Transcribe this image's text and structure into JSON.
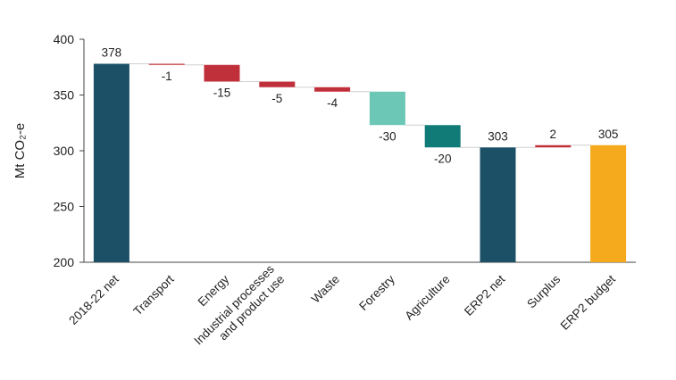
{
  "chart_data": {
    "type": "bar",
    "subtype": "waterfall",
    "title": "",
    "xlabel": "",
    "ylabel": "Mt CO₂-e",
    "ylim": [
      200,
      400
    ],
    "yticks": [
      "200",
      "250",
      "300",
      "350",
      "400"
    ],
    "grid": false,
    "legend": "none",
    "categories": [
      [
        "2018-22 net"
      ],
      [
        "Transport"
      ],
      [
        "Energy"
      ],
      [
        "Industrial processes",
        "and product use"
      ],
      [
        "Waste"
      ],
      [
        "Forestry"
      ],
      [
        "Agriculture"
      ],
      [
        "ERP2 net"
      ],
      [
        "Surplus"
      ],
      [
        "ERP2 budget"
      ]
    ],
    "bars": [
      {
        "start": 200,
        "end": 378,
        "label": "378",
        "color": "#1b5066"
      },
      {
        "start": 378,
        "end": 377,
        "label": "-1",
        "color": "#c0303a"
      },
      {
        "start": 377,
        "end": 362,
        "label": "-15",
        "color": "#c0303a"
      },
      {
        "start": 362,
        "end": 357,
        "label": "-5",
        "color": "#c0303a"
      },
      {
        "start": 357,
        "end": 353,
        "label": "-4",
        "color": "#c0303a"
      },
      {
        "start": 353,
        "end": 323,
        "label": "-30",
        "color": "#6cc7b7"
      },
      {
        "start": 323,
        "end": 303,
        "label": "-20",
        "color": "#117b78"
      },
      {
        "start": 200,
        "end": 303,
        "label": "303",
        "color": "#1b5066"
      },
      {
        "start": 303,
        "end": 305,
        "label": "2",
        "color": "#c0303a"
      },
      {
        "start": 200,
        "end": 305,
        "label": "305",
        "color": "#f5a91c"
      }
    ]
  }
}
